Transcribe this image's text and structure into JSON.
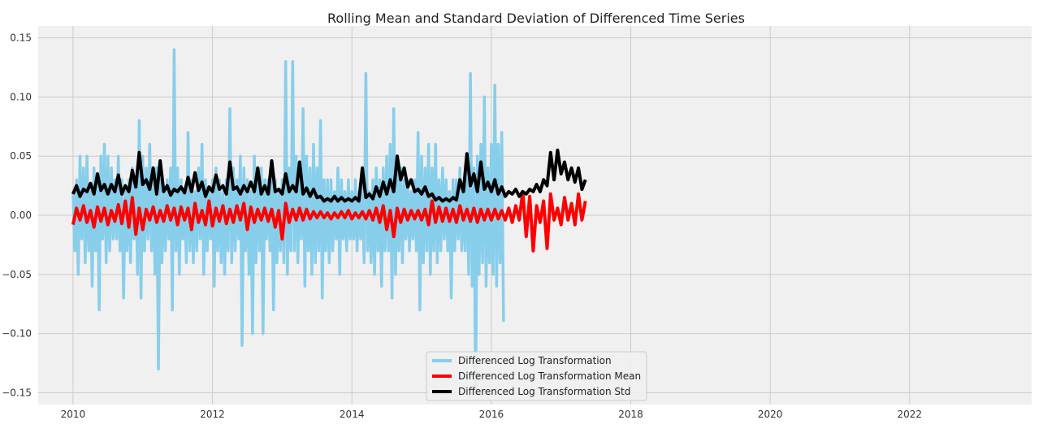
{
  "chart_data": {
    "type": "line",
    "title": "Rolling Mean and Standard Deviation of Differenced Time Series",
    "xlabel": "",
    "ylabel": "",
    "xlim": [
      2009.5,
      2023.75
    ],
    "ylim": [
      -0.16,
      0.16
    ],
    "x_ticks": [
      2010,
      2012,
      2014,
      2016,
      2018,
      2020,
      2022
    ],
    "x_tick_labels": [
      "2010",
      "2012",
      "2014",
      "2016",
      "2018",
      "2020",
      "2022"
    ],
    "y_ticks": [
      -0.15,
      -0.1,
      -0.05,
      0.0,
      0.05,
      0.1,
      0.15
    ],
    "y_tick_labels": [
      "−0.15",
      "−0.10",
      "−0.05",
      "0.00",
      "0.05",
      "0.10",
      "0.15"
    ],
    "grid": true,
    "background": "#f0f0f0",
    "legend": "bottom-center",
    "series": [
      {
        "name": "Differenced Log Transformation",
        "color": "#87ceeb",
        "x_start": 2010.0,
        "x_step": 0.025,
        "values": [
          0.02,
          -0.03,
          0.03,
          -0.05,
          0.05,
          -0.02,
          0.04,
          -0.04,
          0.05,
          -0.03,
          0.02,
          -0.06,
          0.04,
          -0.03,
          0.03,
          -0.08,
          0.05,
          -0.02,
          0.06,
          -0.04,
          0.05,
          -0.03,
          0.04,
          -0.02,
          0.03,
          -0.02,
          0.05,
          -0.03,
          0.03,
          -0.07,
          0.02,
          -0.03,
          0.03,
          -0.04,
          0.04,
          -0.02,
          0.03,
          -0.05,
          0.08,
          -0.07,
          0.05,
          -0.03,
          0.04,
          -0.02,
          0.06,
          -0.03,
          0.04,
          -0.05,
          0.04,
          -0.13,
          0.03,
          -0.04,
          0.02,
          -0.03,
          0.03,
          -0.02,
          0.04,
          -0.08,
          0.14,
          -0.03,
          0.04,
          -0.05,
          0.03,
          -0.02,
          0.02,
          -0.04,
          0.07,
          -0.03,
          0.03,
          -0.04,
          0.02,
          -0.03,
          0.04,
          -0.02,
          0.06,
          -0.05,
          0.03,
          -0.03,
          0.02,
          -0.02,
          0.03,
          -0.06,
          0.04,
          -0.03,
          0.03,
          -0.04,
          0.02,
          -0.05,
          0.03,
          -0.03,
          0.09,
          -0.04,
          0.04,
          -0.03,
          0.03,
          -0.02,
          0.05,
          -0.11,
          0.04,
          -0.03,
          0.03,
          -0.05,
          0.02,
          -0.1,
          0.05,
          -0.04,
          0.04,
          -0.03,
          0.04,
          -0.1,
          0.03,
          -0.02,
          0.03,
          -0.03,
          0.04,
          -0.08,
          0.03,
          -0.04,
          0.02,
          -0.03,
          0.03,
          -0.04,
          0.13,
          -0.05,
          0.04,
          -0.03,
          0.13,
          -0.03,
          0.05,
          -0.04,
          0.04,
          -0.02,
          0.09,
          -0.06,
          0.05,
          -0.03,
          0.04,
          -0.05,
          0.06,
          -0.04,
          0.04,
          -0.03,
          0.08,
          -0.07,
          0.03,
          -0.03,
          0.03,
          -0.04,
          0.03,
          -0.03,
          0.02,
          -0.02,
          0.04,
          -0.05,
          0.03,
          -0.02,
          0.02,
          -0.03,
          0.03,
          -0.02,
          0.02,
          -0.02,
          0.03,
          -0.03,
          0.02,
          -0.02,
          0.03,
          -0.04,
          0.12,
          -0.03,
          0.02,
          -0.04,
          0.03,
          -0.05,
          0.04,
          -0.03,
          0.03,
          -0.06,
          0.04,
          -0.03,
          0.05,
          -0.03,
          0.06,
          -0.07,
          0.09,
          -0.05,
          0.04,
          -0.03,
          0.04,
          -0.04,
          0.03,
          -0.02,
          0.03,
          -0.03,
          0.02,
          -0.02,
          0.03,
          -0.03,
          0.07,
          -0.08,
          0.05,
          -0.04,
          0.04,
          -0.03,
          0.06,
          -0.05,
          0.04,
          -0.03,
          0.06,
          -0.04,
          0.03,
          -0.03,
          0.04,
          -0.02,
          0.03,
          -0.03,
          0.02,
          -0.07,
          0.03,
          -0.03,
          0.03,
          -0.02,
          0.04,
          -0.03,
          0.02,
          -0.03,
          0.05,
          -0.05,
          0.12,
          -0.06,
          0.04,
          -0.15,
          0.05,
          -0.05,
          0.06,
          -0.04,
          0.1,
          -0.06,
          0.04,
          -0.04,
          0.06,
          -0.05,
          0.11,
          -0.06,
          0.06,
          -0.04,
          0.07,
          -0.09
        ]
      },
      {
        "name": "Differenced Log Transformation Mean",
        "color": "#ff0000",
        "x_start": 2010.0,
        "x_step": 0.05,
        "values": [
          -0.008,
          0.006,
          -0.004,
          0.008,
          -0.006,
          0.004,
          -0.01,
          0.007,
          -0.005,
          0.006,
          -0.008,
          0.004,
          -0.005,
          0.009,
          -0.007,
          0.012,
          -0.01,
          0.015,
          -0.016,
          0.006,
          -0.012,
          0.005,
          -0.004,
          0.007,
          -0.006,
          0.004,
          -0.005,
          0.008,
          -0.004,
          0.006,
          -0.008,
          0.007,
          -0.004,
          0.006,
          -0.012,
          0.01,
          -0.006,
          0.004,
          -0.008,
          0.012,
          -0.009,
          0.006,
          -0.005,
          0.008,
          -0.007,
          0.005,
          -0.006,
          0.008,
          -0.004,
          0.01,
          -0.012,
          0.007,
          -0.006,
          0.005,
          -0.004,
          0.006,
          -0.005,
          0.005,
          -0.01,
          0.004,
          -0.02,
          0.01,
          -0.006,
          0.005,
          -0.004,
          0.006,
          -0.004,
          0.005,
          -0.003,
          0.003,
          -0.002,
          0.003,
          -0.002,
          0.002,
          -0.003,
          0.002,
          -0.002,
          0.003,
          -0.002,
          0.004,
          -0.003,
          0.002,
          -0.002,
          0.003,
          -0.003,
          0.004,
          -0.004,
          0.006,
          -0.006,
          0.008,
          -0.012,
          0.004,
          -0.018,
          0.006,
          -0.006,
          0.005,
          -0.004,
          0.004,
          -0.003,
          0.004,
          -0.004,
          0.005,
          -0.008,
          0.012,
          -0.006,
          0.007,
          -0.005,
          0.006,
          -0.005,
          0.005,
          -0.006,
          0.008,
          -0.004,
          0.005,
          -0.005,
          0.006,
          -0.006,
          0.005,
          -0.004,
          0.005,
          -0.004,
          0.005,
          -0.003,
          0.004,
          -0.004,
          0.006,
          -0.006,
          0.008,
          -0.004,
          0.02,
          -0.018,
          0.016,
          -0.03,
          0.008,
          -0.006,
          0.012,
          -0.028,
          0.018,
          -0.004,
          0.006,
          -0.008,
          0.015,
          -0.004,
          0.01,
          -0.008,
          0.018,
          -0.004,
          0.012
        ]
      },
      {
        "name": "Differenced Log Transformation Std",
        "color": "#000000",
        "x_start": 2010.0,
        "x_step": 0.05,
        "values": [
          0.018,
          0.025,
          0.016,
          0.022,
          0.02,
          0.027,
          0.018,
          0.035,
          0.021,
          0.026,
          0.018,
          0.026,
          0.02,
          0.034,
          0.018,
          0.025,
          0.02,
          0.038,
          0.024,
          0.053,
          0.026,
          0.03,
          0.022,
          0.04,
          0.018,
          0.046,
          0.02,
          0.025,
          0.017,
          0.022,
          0.02,
          0.024,
          0.019,
          0.032,
          0.02,
          0.036,
          0.021,
          0.028,
          0.016,
          0.024,
          0.02,
          0.034,
          0.022,
          0.025,
          0.018,
          0.045,
          0.022,
          0.024,
          0.018,
          0.025,
          0.02,
          0.028,
          0.02,
          0.04,
          0.018,
          0.025,
          0.018,
          0.046,
          0.02,
          0.022,
          0.018,
          0.035,
          0.02,
          0.025,
          0.02,
          0.045,
          0.018,
          0.023,
          0.016,
          0.022,
          0.015,
          0.016,
          0.012,
          0.014,
          0.012,
          0.016,
          0.012,
          0.015,
          0.012,
          0.014,
          0.012,
          0.015,
          0.012,
          0.04,
          0.015,
          0.018,
          0.014,
          0.024,
          0.016,
          0.028,
          0.018,
          0.03,
          0.02,
          0.05,
          0.03,
          0.04,
          0.024,
          0.03,
          0.02,
          0.022,
          0.018,
          0.024,
          0.016,
          0.018,
          0.013,
          0.015,
          0.012,
          0.014,
          0.012,
          0.015,
          0.013,
          0.03,
          0.02,
          0.052,
          0.025,
          0.035,
          0.02,
          0.045,
          0.022,
          0.028,
          0.02,
          0.03,
          0.018,
          0.024,
          0.016,
          0.02,
          0.018,
          0.022,
          0.016,
          0.02,
          0.018,
          0.022,
          0.02,
          0.026,
          0.02,
          0.03,
          0.025,
          0.053,
          0.03,
          0.055,
          0.035,
          0.045,
          0.03,
          0.04,
          0.028,
          0.04,
          0.022,
          0.03
        ]
      }
    ]
  }
}
